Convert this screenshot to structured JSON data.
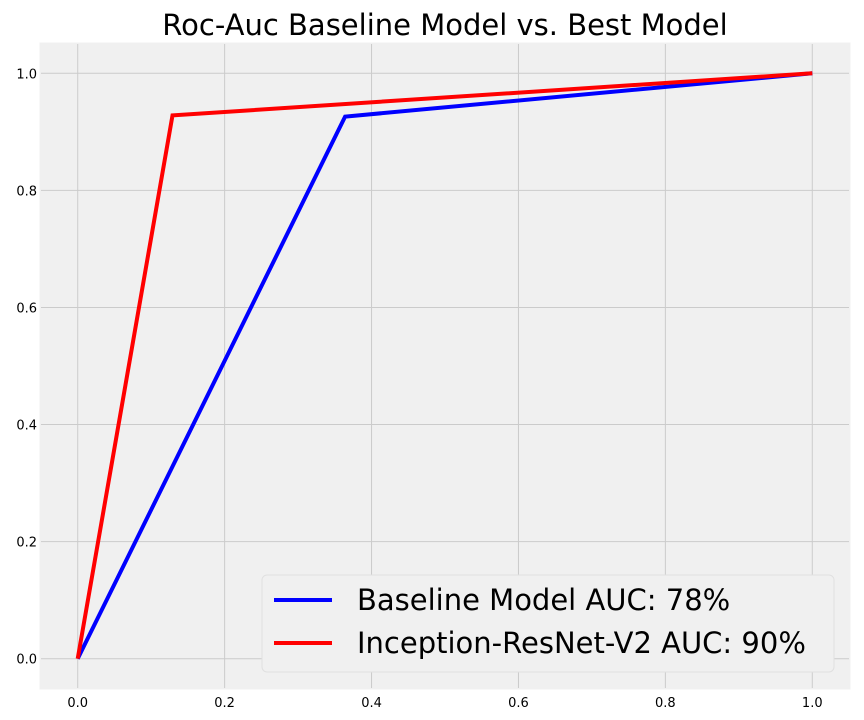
{
  "chart_data": {
    "type": "line",
    "title": "Roc-Auc Baseline Model vs. Best Model",
    "xlabel": "",
    "ylabel": "",
    "xlim": [
      -0.05,
      1.05
    ],
    "ylim": [
      -0.05,
      1.05
    ],
    "xticks": [
      "0.0",
      "0.2",
      "0.4",
      "0.6",
      "0.8",
      "1.0"
    ],
    "yticks": [
      "0.0",
      "0.2",
      "0.4",
      "0.6",
      "0.8",
      "1.0"
    ],
    "grid": true,
    "legend_position": "lower-right",
    "series": [
      {
        "name": "Baseline Model AUC: 78%",
        "color": "#0000ff",
        "x": [
          0.0,
          0.364,
          1.0
        ],
        "y": [
          0.0,
          0.926,
          1.0
        ]
      },
      {
        "name": "Inception-ResNet-V2 AUC: 90%",
        "color": "#ff0000",
        "x": [
          0.0,
          0.129,
          1.0
        ],
        "y": [
          0.0,
          0.928,
          1.0
        ]
      }
    ]
  }
}
